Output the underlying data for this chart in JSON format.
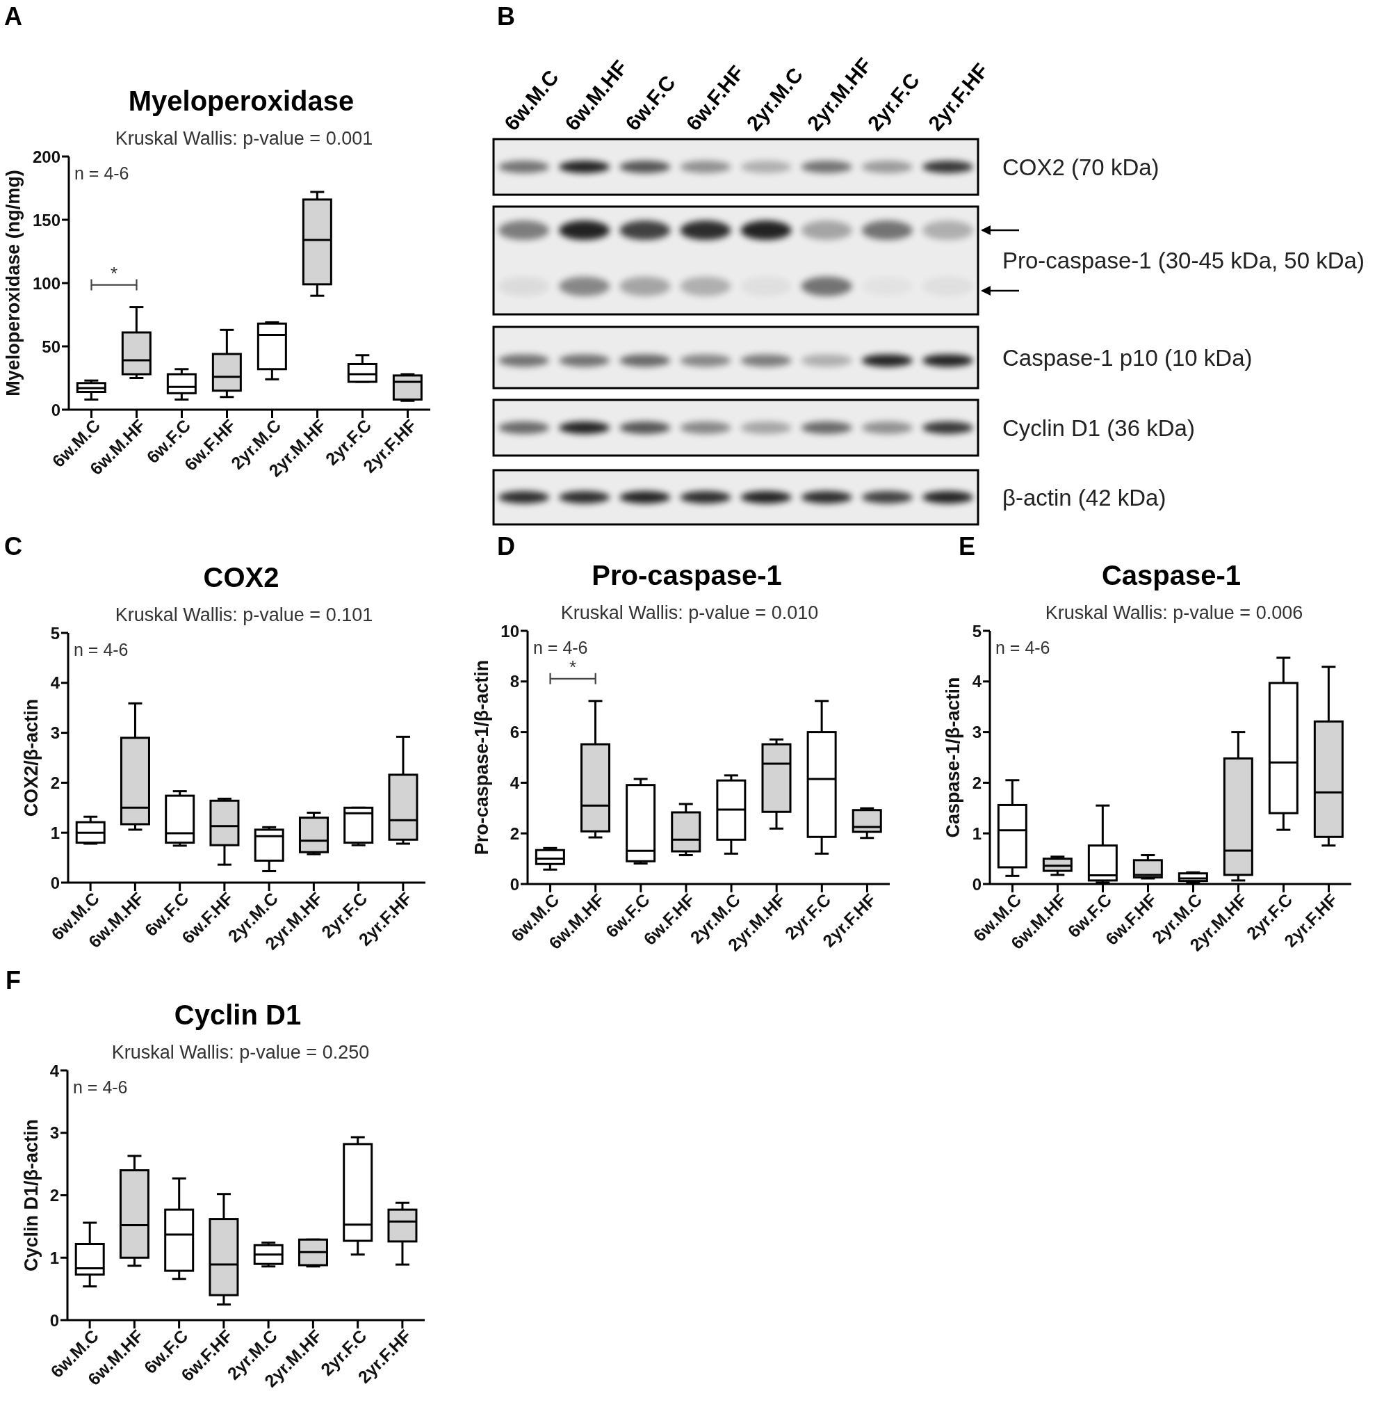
{
  "chart_data": [
    {
      "type": "box",
      "title": "Myeloperoxidase",
      "subtitle": "Kruskal Wallis: p-value = 0.001",
      "ylabel": "Myeloperoxidase (ng/mg)",
      "annotations": [
        "A",
        "n = 4-6",
        "*"
      ],
      "categories": [
        "6w.M.C",
        "6w.M.HF",
        "6w.F.C",
        "6w.F.HF",
        "2yr.M.C",
        "2yr.M.HF",
        "2yr.F.C",
        "2yr.F.HF"
      ],
      "boxes": [
        {
          "low": 8,
          "q1": 14,
          "median": 17,
          "q3": 21,
          "high": 23
        },
        {
          "low": 25,
          "q1": 28,
          "median": 39,
          "q3": 61,
          "high": 81
        },
        {
          "low": 8,
          "q1": 13,
          "median": 18,
          "q3": 28,
          "high": 32
        },
        {
          "low": 10,
          "q1": 15,
          "median": 26,
          "q3": 44,
          "high": 63
        },
        {
          "low": 24,
          "q1": 32,
          "median": 59,
          "q3": 68,
          "high": 69
        },
        {
          "low": 90,
          "q1": 99,
          "median": 134,
          "q3": 166,
          "high": 172
        },
        {
          "low": 22,
          "q1": 22,
          "median": 28,
          "q3": 36,
          "high": 43
        },
        {
          "low": 7,
          "q1": 8,
          "median": 22,
          "q3": 27,
          "high": 28
        }
      ],
      "colors": [
        "#ffffff",
        "#d3d3d3",
        "#ffffff",
        "#d3d3d3",
        "#ffffff",
        "#d3d3d3",
        "#ffffff",
        "#d3d3d3"
      ],
      "ylim": [
        0,
        200
      ],
      "yticks": [
        0,
        50,
        100,
        150,
        200
      ]
    },
    {
      "type": "other",
      "annotations": [
        "B"
      ],
      "categories": [
        "6w.M.C",
        "6w.M.HF",
        "6w.F.C",
        "6w.F.HF",
        "2yr.M.C",
        "2yr.M.HF",
        "2yr.F.C",
        "2yr.F.HF"
      ],
      "y_categories": [
        "COX2 (70 kDa)",
        "Pro-caspase-1 (30-45 kDa, 50 kDa)",
        "Caspase-1 p10 (10 kDa)",
        "Cyclin D1 (36 kDa)",
        "β-actin (42 kDa)"
      ]
    },
    {
      "type": "box",
      "title": "COX2",
      "subtitle": "Kruskal Wallis: p-value = 0.101",
      "ylabel": "COX2/β-actin",
      "annotations": [
        "C",
        "n = 4-6"
      ],
      "categories": [
        "6w.M.C",
        "6w.M.HF",
        "6w.F.C",
        "6w.F.HF",
        "2yr.M.C",
        "2yr.M.HF",
        "2yr.F.C",
        "2yr.F.HF"
      ],
      "boxes": [
        {
          "low": 0.78,
          "q1": 0.8,
          "median": 1.0,
          "q3": 1.21,
          "high": 1.32
        },
        {
          "low": 1.06,
          "q1": 1.17,
          "median": 1.5,
          "q3": 2.9,
          "high": 3.59
        },
        {
          "low": 0.74,
          "q1": 0.8,
          "median": 0.99,
          "q3": 1.74,
          "high": 1.83
        },
        {
          "low": 0.36,
          "q1": 0.75,
          "median": 1.13,
          "q3": 1.64,
          "high": 1.68
        },
        {
          "low": 0.23,
          "q1": 0.44,
          "median": 0.93,
          "q3": 1.06,
          "high": 1.11
        },
        {
          "low": 0.57,
          "q1": 0.61,
          "median": 0.84,
          "q3": 1.3,
          "high": 1.4
        },
        {
          "low": 0.75,
          "q1": 0.8,
          "median": 1.39,
          "q3": 1.5,
          "high": 1.5
        },
        {
          "low": 0.78,
          "q1": 0.86,
          "median": 1.25,
          "q3": 2.16,
          "high": 2.92
        }
      ],
      "colors": [
        "#ffffff",
        "#d3d3d3",
        "#ffffff",
        "#d3d3d3",
        "#ffffff",
        "#d3d3d3",
        "#ffffff",
        "#d3d3d3"
      ],
      "ylim": [
        0,
        5
      ],
      "yticks": [
        0,
        1,
        2,
        3,
        4,
        5
      ]
    },
    {
      "type": "box",
      "title": "Pro-caspase-1",
      "subtitle": "Kruskal Wallis: p-value = 0.010",
      "ylabel": "Pro-caspase-1/β-actin",
      "annotations": [
        "D",
        "n = 4-6",
        "*"
      ],
      "categories": [
        "6w.M.C",
        "6w.M.HF",
        "6w.F.C",
        "6w.F.HF",
        "2yr.M.C",
        "2yr.M.HF",
        "2yr.F.C",
        "2yr.F.HF"
      ],
      "boxes": [
        {
          "low": 0.57,
          "q1": 0.79,
          "median": 1.0,
          "q3": 1.34,
          "high": 1.42
        },
        {
          "low": 1.84,
          "q1": 2.08,
          "median": 3.1,
          "q3": 5.52,
          "high": 7.23
        },
        {
          "low": 0.81,
          "q1": 0.9,
          "median": 1.31,
          "q3": 3.91,
          "high": 4.15
        },
        {
          "low": 1.14,
          "q1": 1.29,
          "median": 1.75,
          "q3": 2.83,
          "high": 3.16
        },
        {
          "low": 1.2,
          "q1": 1.75,
          "median": 2.94,
          "q3": 4.09,
          "high": 4.29
        },
        {
          "low": 2.19,
          "q1": 2.85,
          "median": 4.75,
          "q3": 5.52,
          "high": 5.71
        },
        {
          "low": 1.2,
          "q1": 1.86,
          "median": 4.15,
          "q3": 6.0,
          "high": 7.23
        },
        {
          "low": 1.82,
          "q1": 2.06,
          "median": 2.25,
          "q3": 2.92,
          "high": 2.99
        }
      ],
      "colors": [
        "#ffffff",
        "#d3d3d3",
        "#ffffff",
        "#d3d3d3",
        "#ffffff",
        "#d3d3d3",
        "#ffffff",
        "#d3d3d3"
      ],
      "ylim": [
        0,
        10
      ],
      "yticks": [
        0,
        2,
        4,
        6,
        8,
        10
      ]
    },
    {
      "type": "box",
      "title": "Caspase-1",
      "subtitle": "Kruskal Wallis: p-value = 0.006",
      "ylabel": "Caspase-1/β-actin",
      "annotations": [
        "E",
        "n = 4-6"
      ],
      "categories": [
        "6w.M.C",
        "6w.M.HF",
        "6w.F.C",
        "6w.F.HF",
        "2yr.M.C",
        "2yr.M.HF",
        "2yr.F.C",
        "2yr.F.HF"
      ],
      "boxes": [
        {
          "low": 0.16,
          "q1": 0.33,
          "median": 1.06,
          "q3": 1.56,
          "high": 2.05
        },
        {
          "low": 0.18,
          "q1": 0.26,
          "median": 0.36,
          "q3": 0.5,
          "high": 0.54
        },
        {
          "low": 0.03,
          "q1": 0.07,
          "median": 0.17,
          "q3": 0.76,
          "high": 1.55
        },
        {
          "low": 0.11,
          "q1": 0.13,
          "median": 0.18,
          "q3": 0.47,
          "high": 0.57
        },
        {
          "low": 0.03,
          "q1": 0.06,
          "median": 0.11,
          "q3": 0.21,
          "high": 0.23
        },
        {
          "low": 0.07,
          "q1": 0.18,
          "median": 0.66,
          "q3": 2.48,
          "high": 3.0
        },
        {
          "low": 1.07,
          "q1": 1.4,
          "median": 2.4,
          "q3": 3.97,
          "high": 4.47
        },
        {
          "low": 0.76,
          "q1": 0.93,
          "median": 1.81,
          "q3": 3.21,
          "high": 4.29
        }
      ],
      "colors": [
        "#ffffff",
        "#d3d3d3",
        "#ffffff",
        "#d3d3d3",
        "#ffffff",
        "#d3d3d3",
        "#ffffff",
        "#d3d3d3"
      ],
      "ylim": [
        0,
        5
      ],
      "yticks": [
        0,
        1,
        2,
        3,
        4,
        5
      ]
    },
    {
      "type": "box",
      "title": "Cyclin D1",
      "subtitle": "Kruskal Wallis: p-value = 0.250",
      "ylabel": "Cyclin D1/β-actin",
      "annotations": [
        "F",
        "n = 4-6"
      ],
      "categories": [
        "6w.M.C",
        "6w.M.HF",
        "6w.F.C",
        "6w.F.HF",
        "2yr.M.C",
        "2yr.M.HF",
        "2yr.F.C",
        "2yr.F.HF"
      ],
      "boxes": [
        {
          "low": 0.54,
          "q1": 0.73,
          "median": 0.83,
          "q3": 1.22,
          "high": 1.56
        },
        {
          "low": 0.87,
          "q1": 1.0,
          "median": 1.52,
          "q3": 2.4,
          "high": 2.63
        },
        {
          "low": 0.66,
          "q1": 0.79,
          "median": 1.37,
          "q3": 1.77,
          "high": 2.27
        },
        {
          "low": 0.25,
          "q1": 0.4,
          "median": 0.89,
          "q3": 1.62,
          "high": 2.02
        },
        {
          "low": 0.86,
          "q1": 0.9,
          "median": 1.05,
          "q3": 1.2,
          "high": 1.24
        },
        {
          "low": 0.86,
          "q1": 0.88,
          "median": 1.09,
          "q3": 1.29,
          "high": 1.29
        },
        {
          "low": 1.05,
          "q1": 1.27,
          "median": 1.53,
          "q3": 2.82,
          "high": 2.93
        },
        {
          "low": 0.89,
          "q1": 1.26,
          "median": 1.58,
          "q3": 1.77,
          "high": 1.88
        }
      ],
      "colors": [
        "#ffffff",
        "#d3d3d3",
        "#ffffff",
        "#d3d3d3",
        "#ffffff",
        "#d3d3d3",
        "#ffffff",
        "#d3d3d3"
      ],
      "ylim": [
        0,
        4
      ],
      "yticks": [
        0,
        1,
        2,
        3,
        4
      ]
    }
  ]
}
